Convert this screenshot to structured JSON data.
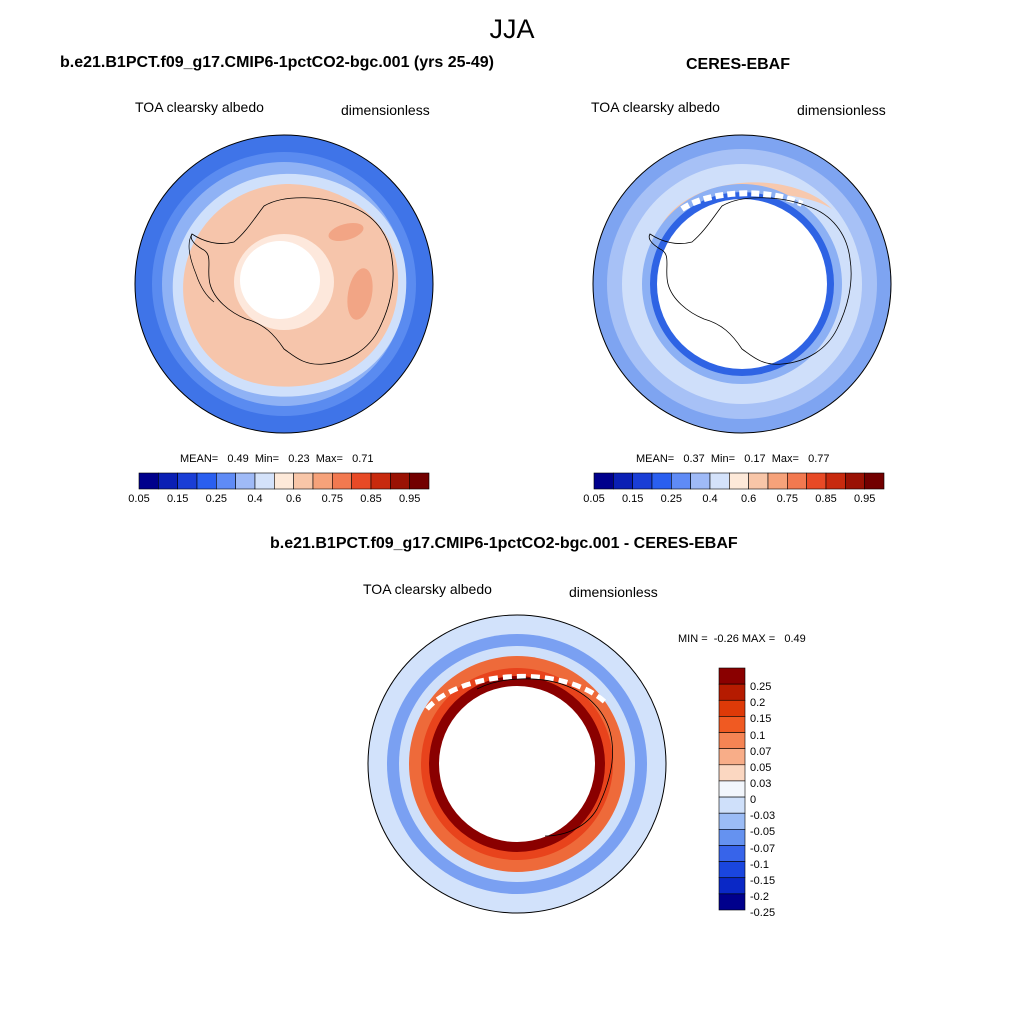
{
  "main_title": "JJA",
  "panels": {
    "left": {
      "title": "b.e21.B1PCT.f09_g17.CMIP6-1pctCO2-bgc.001 (yrs 25-49)",
      "variable": "TOA clearsky albedo",
      "units": "dimensionless",
      "stats": "MEAN=   0.49  Min=   0.23  Max=   0.71"
    },
    "right": {
      "title": "CERES-EBAF",
      "variable": "TOA clearsky albedo",
      "units": "dimensionless",
      "stats": "MEAN=   0.37  Min=   0.17  Max=   0.77"
    },
    "diff": {
      "title": "b.e21.B1PCT.f09_g17.CMIP6-1pctCO2-bgc.001 - CERES-EBAF",
      "variable": "TOA clearsky albedo",
      "units": "dimensionless",
      "stats": "MIN =  -0.26 MAX =   0.49"
    }
  },
  "colorbar_abs": {
    "colors": [
      "#00008c",
      "#0a1fb4",
      "#1a3ed6",
      "#2a5ff0",
      "#5f8bf6",
      "#9fbaf7",
      "#d4e2fa",
      "#fde9d9",
      "#f8c6a8",
      "#f6a27a",
      "#f27950",
      "#e84a26",
      "#c82a0e",
      "#9a1204",
      "#720000"
    ],
    "labels": [
      "0.05",
      "0.15",
      "0.25",
      "0.4",
      "0.6",
      "0.75",
      "0.85",
      "0.95"
    ]
  },
  "colorbar_diff": {
    "colors": [
      "#8a0000",
      "#b51b00",
      "#de3a08",
      "#f05a22",
      "#f58454",
      "#f8ad88",
      "#fbd7c1",
      "#f2f6fc",
      "#cfe0fa",
      "#9bbcf6",
      "#6592f0",
      "#3764ea",
      "#1a46df",
      "#0a28c6",
      "#00008c"
    ],
    "labels": [
      "0.25",
      "0.2",
      "0.15",
      "0.1",
      "0.07",
      "0.05",
      "0.03",
      "0",
      "-0.03",
      "-0.05",
      "-0.07",
      "-0.1",
      "-0.15",
      "-0.2",
      "-0.25"
    ]
  }
}
